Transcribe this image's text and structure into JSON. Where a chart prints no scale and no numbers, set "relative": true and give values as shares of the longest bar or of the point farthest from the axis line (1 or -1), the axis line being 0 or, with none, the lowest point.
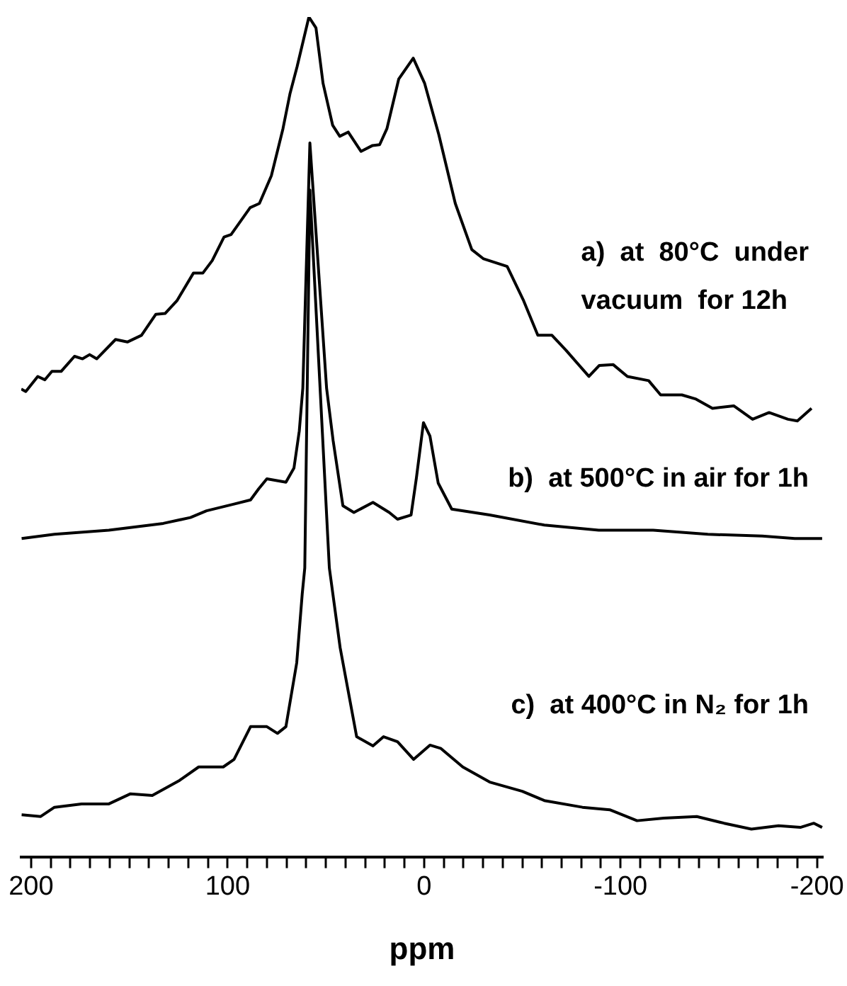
{
  "chart_data": {
    "type": "line",
    "relative": true,
    "xlabel": "ppm",
    "xlim": [
      205,
      -203
    ],
    "xticks": [
      200,
      {
        "value": 190,
        "label": null
      },
      {
        "value": 180,
        "label": null
      },
      {
        "value": 170,
        "label": null
      },
      {
        "value": 160,
        "label": null
      },
      {
        "value": 150,
        "label": null
      },
      {
        "value": 140,
        "label": null
      },
      {
        "value": 130,
        "label": null
      },
      {
        "value": 120,
        "label": null
      },
      {
        "value": 110,
        "label": null
      },
      100,
      {
        "value": 90,
        "label": null
      },
      {
        "value": 80,
        "label": null
      },
      {
        "value": 70,
        "label": null
      },
      {
        "value": 60,
        "label": null
      },
      {
        "value": 50,
        "label": null
      },
      {
        "value": 40,
        "label": null
      },
      {
        "value": 30,
        "label": null
      },
      {
        "value": 20,
        "label": null
      },
      {
        "value": 10,
        "label": null
      },
      0,
      {
        "value": -10,
        "label": null
      },
      {
        "value": -20,
        "label": null
      },
      {
        "value": -30,
        "label": null
      },
      {
        "value": -40,
        "label": null
      },
      {
        "value": -50,
        "label": null
      },
      {
        "value": -60,
        "label": null
      },
      {
        "value": -70,
        "label": null
      },
      {
        "value": -80,
        "label": null
      },
      {
        "value": -90,
        "label": null
      },
      -100,
      {
        "value": -110,
        "label": null
      },
      {
        "value": -120,
        "label": null
      },
      {
        "value": -130,
        "label": null
      },
      {
        "value": -140,
        "label": null
      },
      {
        "value": -150,
        "label": null
      },
      {
        "value": -160,
        "label": null
      },
      {
        "value": -170,
        "label": null
      },
      {
        "value": -180,
        "label": null
      },
      {
        "value": -190,
        "label": null
      },
      -200
    ],
    "legend": false,
    "marker": "none",
    "line_style": "solid",
    "grid": false,
    "series": [
      {
        "name": "a)  at  80°C  under vacuum  for 12h",
        "color": "#000000",
        "x": [
          205,
          202.7,
          196.6,
          193.0,
          189.4,
          184.7,
          177.9,
          173.8,
          170.2,
          166.6,
          157.0,
          151.0,
          143.8,
          136.5,
          131.8,
          125.8,
          117.4,
          112.6,
          107.8,
          101.8,
          98.2,
          88.5,
          83.8,
          77.7,
          71.8,
          68.2,
          64.6,
          58.6,
          55.0,
          51.4,
          46.5,
          42.9,
          38.6,
          32.1,
          26.2,
          22.6,
          18.9,
          12.9,
          5.5,
          -0.3,
          -7.5,
          -15.9,
          -24.3,
          -30.3,
          -42.3,
          -50.7,
          -57.9,
          -65.1,
          -72.3,
          -83.9,
          -89.1,
          -96.3,
          -103.5,
          -114.3,
          -120.4,
          -131.2,
          -138.4,
          -146.8,
          -157.6,
          -167.2,
          -175.6,
          -185.2,
          -190.0,
          -197.2
        ],
        "values": [
          0.557,
          0.554,
          0.572,
          0.568,
          0.578,
          0.578,
          0.596,
          0.593,
          0.598,
          0.593,
          0.616,
          0.613,
          0.621,
          0.646,
          0.647,
          0.662,
          0.695,
          0.695,
          0.71,
          0.738,
          0.741,
          0.773,
          0.778,
          0.811,
          0.867,
          0.909,
          0.941,
          1.0,
          0.987,
          0.921,
          0.871,
          0.858,
          0.863,
          0.84,
          0.847,
          0.848,
          0.867,
          0.926,
          0.951,
          0.921,
          0.86,
          0.778,
          0.723,
          0.712,
          0.703,
          0.662,
          0.621,
          0.621,
          0.603,
          0.572,
          0.585,
          0.586,
          0.572,
          0.567,
          0.55,
          0.55,
          0.545,
          0.534,
          0.537,
          0.521,
          0.529,
          0.521,
          0.519,
          0.534
        ]
      },
      {
        "name": "b)  at 500°C in air for 1h",
        "color": "#000000",
        "x": [
          204.8,
          188.1,
          160.4,
          132.7,
          118.9,
          110.7,
          96.7,
          88.3,
          84.2,
          80.0,
          70.3,
          66.2,
          63.5,
          61.7,
          58.1,
          49.6,
          46.3,
          41.3,
          35.7,
          26.0,
          17.7,
          13.5,
          6.6,
          3.9,
          0.3,
          -3.0,
          -7.2,
          -14.1,
          -33.4,
          -61.2,
          -88.9,
          -116.6,
          -144.4,
          -172.1,
          -188.7,
          -202.6
        ],
        "values": [
          0.379,
          0.384,
          0.389,
          0.397,
          0.404,
          0.412,
          0.42,
          0.425,
          0.438,
          0.45,
          0.446,
          0.463,
          0.507,
          0.558,
          0.85,
          0.558,
          0.496,
          0.418,
          0.41,
          0.422,
          0.41,
          0.402,
          0.407,
          0.451,
          0.517,
          0.501,
          0.445,
          0.414,
          0.407,
          0.395,
          0.389,
          0.389,
          0.384,
          0.382,
          0.379,
          0.379
        ]
      },
      {
        "name": "c)  at 400°C in N₂ for 1h",
        "color": "#000000",
        "x": [
          204.8,
          195.1,
          188.1,
          174.3,
          160.4,
          149.4,
          138.3,
          124.4,
          114.7,
          102.2,
          96.7,
          88.3,
          80.0,
          74.6,
          70.3,
          64.8,
          62.0,
          60.7,
          58.1,
          48.2,
          42.7,
          34.3,
          26.0,
          20.6,
          13.5,
          5.3,
          -3.0,
          -8.6,
          -19.7,
          -33.4,
          -50.0,
          -61.2,
          -80.6,
          -94.5,
          -108.4,
          -122.0,
          -138.8,
          -152.7,
          -166.6,
          -180.4,
          -191.5,
          -198.4,
          -202.6
        ],
        "values": [
          0.05,
          0.048,
          0.059,
          0.063,
          0.063,
          0.075,
          0.073,
          0.091,
          0.107,
          0.107,
          0.116,
          0.155,
          0.155,
          0.147,
          0.155,
          0.231,
          0.313,
          0.344,
          0.794,
          0.344,
          0.249,
          0.143,
          0.132,
          0.143,
          0.137,
          0.116,
          0.133,
          0.129,
          0.107,
          0.089,
          0.078,
          0.067,
          0.059,
          0.056,
          0.043,
          0.046,
          0.048,
          0.04,
          0.033,
          0.037,
          0.035,
          0.04,
          0.035
        ]
      }
    ]
  }
}
